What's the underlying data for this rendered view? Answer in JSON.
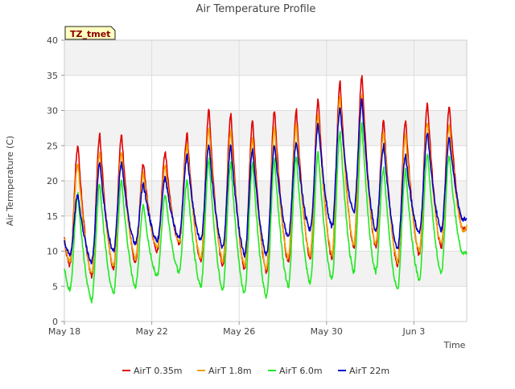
{
  "chart_data": {
    "type": "line",
    "title": "Air Temperature Profile",
    "xlabel": "Time",
    "ylabel": "Air Termperature (C)",
    "site_label": "TZ_tmet",
    "xlim": [
      "2018-05-18",
      "2018-06-05"
    ],
    "ylim": [
      0,
      40
    ],
    "y_ticks": [
      0,
      5,
      10,
      15,
      20,
      25,
      30,
      35,
      40
    ],
    "x_ticks": [
      {
        "date": "2018-05-18",
        "label": "May 18"
      },
      {
        "date": "2018-05-22",
        "label": "May 22"
      },
      {
        "date": "2018-05-26",
        "label": "May 26"
      },
      {
        "date": "2018-05-30",
        "label": "May 30"
      },
      {
        "date": "2018-06-03",
        "label": "Jun 3"
      }
    ],
    "grid": true,
    "banded_background": true,
    "legend_position": "bottom",
    "daily": [
      {
        "date": "2018-05-18",
        "series": [
          {
            "min": 8.0,
            "max": 25.0
          },
          {
            "min": 8.5,
            "max": 22.5
          },
          {
            "min": 4.5,
            "max": 18.0
          },
          {
            "min": 9.5,
            "max": 18.0
          }
        ]
      },
      {
        "date": "2018-05-19",
        "series": [
          {
            "min": 6.5,
            "max": 26.5
          },
          {
            "min": 7.0,
            "max": 24.0
          },
          {
            "min": 3.0,
            "max": 19.5
          },
          {
            "min": 8.5,
            "max": 22.5
          }
        ]
      },
      {
        "date": "2018-05-20",
        "series": [
          {
            "min": 7.5,
            "max": 26.5
          },
          {
            "min": 8.0,
            "max": 24.0
          },
          {
            "min": 4.0,
            "max": 20.0
          },
          {
            "min": 10.0,
            "max": 22.5
          }
        ]
      },
      {
        "date": "2018-05-21",
        "series": [
          {
            "min": 8.5,
            "max": 22.5
          },
          {
            "min": 9.0,
            "max": 21.0
          },
          {
            "min": 5.0,
            "max": 16.5
          },
          {
            "min": 11.0,
            "max": 19.5
          }
        ]
      },
      {
        "date": "2018-05-22",
        "series": [
          {
            "min": 10.0,
            "max": 24.0
          },
          {
            "min": 10.5,
            "max": 22.0
          },
          {
            "min": 6.5,
            "max": 18.0
          },
          {
            "min": 11.5,
            "max": 20.5
          }
        ]
      },
      {
        "date": "2018-05-23",
        "series": [
          {
            "min": 11.0,
            "max": 26.5
          },
          {
            "min": 11.5,
            "max": 25.0
          },
          {
            "min": 7.0,
            "max": 20.0
          },
          {
            "min": 12.0,
            "max": 23.5
          }
        ]
      },
      {
        "date": "2018-05-24",
        "series": [
          {
            "min": 8.5,
            "max": 30.0
          },
          {
            "min": 9.0,
            "max": 27.5
          },
          {
            "min": 5.0,
            "max": 23.0
          },
          {
            "min": 11.5,
            "max": 25.0
          }
        ]
      },
      {
        "date": "2018-05-25",
        "series": [
          {
            "min": 8.0,
            "max": 29.5
          },
          {
            "min": 8.5,
            "max": 27.0
          },
          {
            "min": 4.5,
            "max": 22.5
          },
          {
            "min": 10.5,
            "max": 25.0
          }
        ]
      },
      {
        "date": "2018-05-26",
        "series": [
          {
            "min": 7.5,
            "max": 28.5
          },
          {
            "min": 8.0,
            "max": 26.0
          },
          {
            "min": 4.0,
            "max": 22.5
          },
          {
            "min": 9.5,
            "max": 24.5
          }
        ]
      },
      {
        "date": "2018-05-27",
        "series": [
          {
            "min": 7.0,
            "max": 30.0
          },
          {
            "min": 7.5,
            "max": 27.5
          },
          {
            "min": 3.5,
            "max": 23.0
          },
          {
            "min": 9.5,
            "max": 25.0
          }
        ]
      },
      {
        "date": "2018-05-28",
        "series": [
          {
            "min": 8.5,
            "max": 30.0
          },
          {
            "min": 9.0,
            "max": 28.0
          },
          {
            "min": 5.0,
            "max": 23.5
          },
          {
            "min": 12.0,
            "max": 25.5
          }
        ]
      },
      {
        "date": "2018-05-29",
        "series": [
          {
            "min": 9.0,
            "max": 31.5
          },
          {
            "min": 9.5,
            "max": 29.5
          },
          {
            "min": 5.5,
            "max": 24.0
          },
          {
            "min": 13.0,
            "max": 28.0
          }
        ]
      },
      {
        "date": "2018-05-30",
        "series": [
          {
            "min": 9.0,
            "max": 34.0
          },
          {
            "min": 9.5,
            "max": 32.0
          },
          {
            "min": 6.0,
            "max": 27.0
          },
          {
            "min": 13.5,
            "max": 30.5
          }
        ]
      },
      {
        "date": "2018-05-31",
        "series": [
          {
            "min": 10.5,
            "max": 35.0
          },
          {
            "min": 11.0,
            "max": 32.0
          },
          {
            "min": 7.0,
            "max": 28.0
          },
          {
            "min": 15.5,
            "max": 31.5
          }
        ]
      },
      {
        "date": "2018-06-01",
        "series": [
          {
            "min": 10.5,
            "max": 28.5
          },
          {
            "min": 11.0,
            "max": 27.0
          },
          {
            "min": 7.0,
            "max": 22.0
          },
          {
            "min": 13.0,
            "max": 25.0
          }
        ]
      },
      {
        "date": "2018-06-02",
        "series": [
          {
            "min": 8.0,
            "max": 28.5
          },
          {
            "min": 8.5,
            "max": 26.5
          },
          {
            "min": 4.5,
            "max": 21.5
          },
          {
            "min": 10.5,
            "max": 23.5
          }
        ]
      },
      {
        "date": "2018-06-03",
        "series": [
          {
            "min": 9.5,
            "max": 31.0
          },
          {
            "min": 10.0,
            "max": 28.5
          },
          {
            "min": 6.0,
            "max": 24.0
          },
          {
            "min": 12.5,
            "max": 27.0
          }
        ]
      },
      {
        "date": "2018-06-04",
        "series": [
          {
            "min": 10.5,
            "max": 30.5
          },
          {
            "min": 11.0,
            "max": 28.0
          },
          {
            "min": 7.0,
            "max": 23.5
          },
          {
            "min": 13.0,
            "max": 26.0
          }
        ]
      },
      {
        "date": "2018-06-05",
        "series": [
          {
            "min": 13.0,
            "max": 14.0
          },
          {
            "min": 13.0,
            "max": 14.0
          },
          {
            "min": 9.5,
            "max": 10.0
          },
          {
            "min": 14.5,
            "max": 15.0
          }
        ]
      }
    ],
    "series": [
      {
        "name": "AirT 0.35m",
        "color": "#e00000"
      },
      {
        "name": "AirT 1.8m",
        "color": "#f0a000"
      },
      {
        "name": "AirT 6.0m",
        "color": "#22e822"
      },
      {
        "name": "AirT 22m",
        "color": "#0000c8"
      }
    ]
  }
}
